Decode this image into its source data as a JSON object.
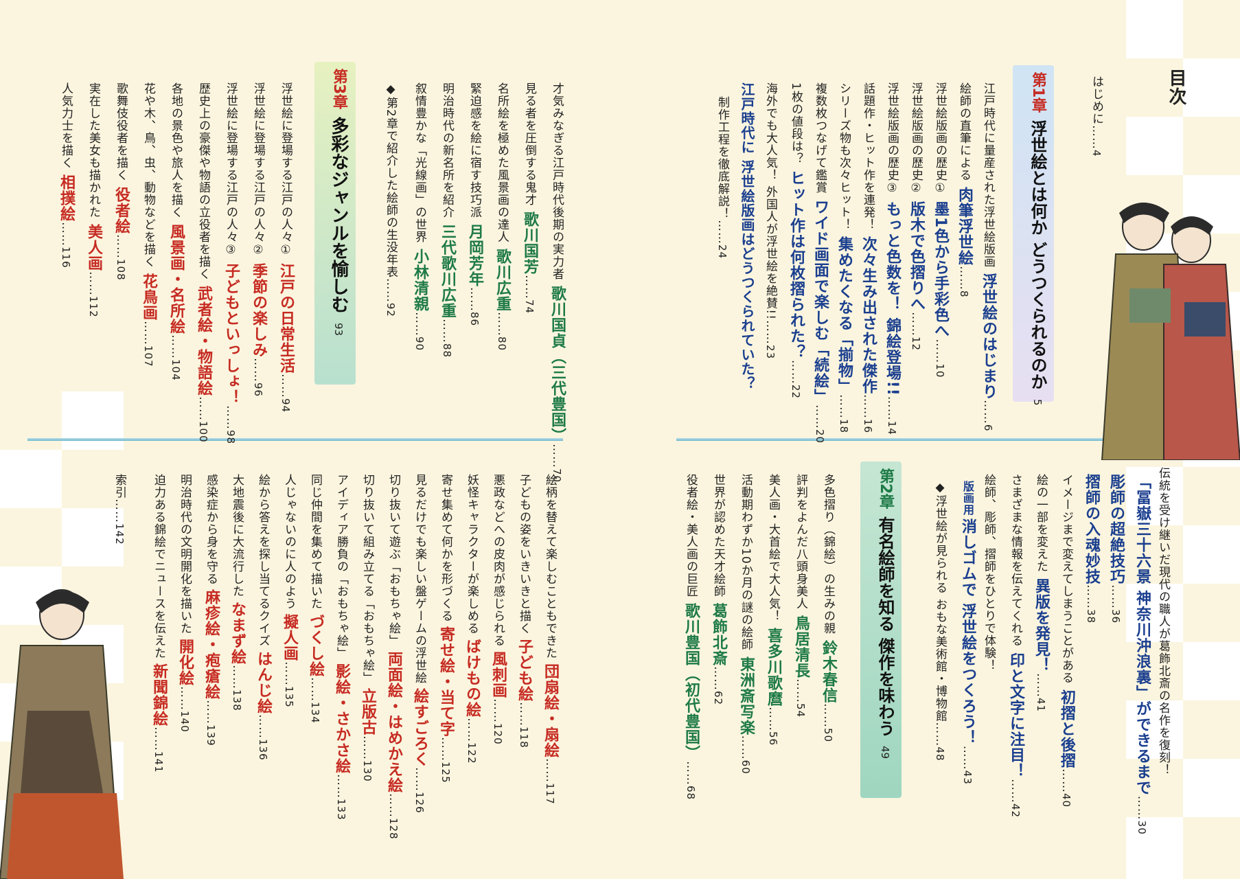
{
  "toc_title": "目次",
  "hajimeni": {
    "label": "はじめに",
    "page": "4"
  },
  "ch1": {
    "mark": "第1章",
    "title": "浮世絵とは何か どうつくられるのか",
    "page": "5"
  },
  "ch1_items": [
    {
      "pre": "江戸時代に量産された浮世絵版画",
      "main": "浮世絵のはじまり",
      "page": "6"
    },
    {
      "pre": "絵師の直筆による",
      "main": "肉筆浮世絵",
      "page": "8"
    },
    {
      "pre": "浮世絵版画の歴史①",
      "main": "墨1色から手彩色へ",
      "page": "10"
    },
    {
      "pre": "浮世絵版画の歴史②",
      "main": "版木で色摺りへ",
      "page": "12"
    },
    {
      "pre": "浮世絵版画の歴史③",
      "main": "もっと色数を！ 錦絵登場!!",
      "page": "14"
    },
    {
      "pre": "話題作・ヒット作を連発！",
      "main": "次々生み出された傑作",
      "page": "16"
    },
    {
      "pre": "シリーズ物も次々ヒット！",
      "main": "集めたくなる「揃物」",
      "page": "18"
    },
    {
      "pre": "複数枚つなげて鑑賞",
      "main": "ワイド画面で楽しむ「続絵」",
      "page": "20"
    },
    {
      "pre": "1枚の値段は？",
      "main": "ヒット作は何枚摺られた？",
      "page": "22"
    },
    {
      "pre": "海外でも大人気！ 外国人が浮世絵を絶賛!!",
      "main": "",
      "page": "23"
    },
    {
      "pre": "",
      "main": "江戸時代に 浮世絵版画はどうつくられていた？",
      "page": ""
    },
    {
      "pre": "制作工程を徹底解説！",
      "main": "",
      "page": "24"
    }
  ],
  "ch1_right": [
    {
      "pre": "伝統を受け継いだ現代の職人が葛飾北斎の名作を復刻！",
      "main": "",
      "page": ""
    },
    {
      "pre": "",
      "main": "「冨嶽三十六景 神奈川沖浪裏」ができるまで",
      "page": "30"
    },
    {
      "pre": "",
      "main": "彫師の超絶技巧",
      "page": "36"
    },
    {
      "pre": "",
      "main": "摺師の入魂妙技",
      "page": "38"
    },
    {
      "pre": "イメージまで変えてしまうことがある",
      "main": "初摺と後摺",
      "page": "40"
    },
    {
      "pre": "絵の一部を変えた",
      "main": "異版を発見！",
      "page": "41"
    },
    {
      "pre": "さまざまな情報を伝えてくれる",
      "main": "印と文字に注目！",
      "page": "42"
    },
    {
      "pre": "絵師、彫師、摺師をひとりで体験！",
      "main": "",
      "page": ""
    },
    {
      "pre": "版画用",
      "main": "消しゴムで 浮世絵をつくろう！",
      "page": "43"
    },
    {
      "pre": "◆浮世絵が見られる おもな美術館・博物館",
      "main": "",
      "page": "48"
    }
  ],
  "ch2": {
    "mark": "第2章",
    "title": "有名絵師を知る 傑作を味わう",
    "page": "49"
  },
  "ch2_items": [
    {
      "pre": "多色摺り（錦絵）の生みの親",
      "main": "鈴木春信",
      "page": "50"
    },
    {
      "pre": "評判をよんだ八頭身美人",
      "main": "鳥居清長",
      "page": "54"
    },
    {
      "pre": "美人画・大首絵で大人気！",
      "main": "喜多川歌麿",
      "page": "56"
    },
    {
      "pre": "活動期わずか10か月の謎の絵師",
      "main": "東洲斎写楽",
      "page": "60"
    },
    {
      "pre": "世界が認めた天才絵師",
      "main": "葛飾北斎",
      "page": "62"
    },
    {
      "pre": "役者絵・美人画の巨匠",
      "main": "歌川豊国（初代豊国）",
      "page": "68"
    }
  ],
  "ch2_left": [
    {
      "pre": "才気みなぎる江戸時代後期の実力者",
      "main": "歌川国貞（三代豊国）",
      "page": "70"
    },
    {
      "pre": "見る者を圧倒する鬼才",
      "main": "歌川国芳",
      "page": "74"
    },
    {
      "pre": "名所絵を極めた風景画の達人",
      "main": "歌川広重",
      "page": "80"
    },
    {
      "pre": "緊迫感を絵に宿す技巧派",
      "main": "月岡芳年",
      "page": "86"
    },
    {
      "pre": "明治時代の新名所を紹介",
      "main": "三代歌川広重",
      "page": "88"
    },
    {
      "pre": "叙情豊かな「光線画」の世界",
      "main": "小林清親",
      "page": "90"
    },
    {
      "pre": "◆第2章で紹介した絵師の生没年表",
      "main": "",
      "page": "92"
    }
  ],
  "ch3": {
    "mark": "第3章",
    "title": "多彩なジャンルを愉しむ",
    "page": "93"
  },
  "ch3_items": [
    {
      "pre": "浮世絵に登場する江戸の人々①",
      "main": "江戸の日常生活",
      "page": "94"
    },
    {
      "pre": "浮世絵に登場する江戸の人々②",
      "main": "季節の楽しみ",
      "page": "96"
    },
    {
      "pre": "浮世絵に登場する江戸の人々③",
      "main": "子どもといっしょ！",
      "page": "98"
    },
    {
      "pre": "歴史上の豪傑や物語の立役者を描く",
      "main": "武者絵・物語絵",
      "page": "100"
    },
    {
      "pre": "各地の景色や旅人を描く",
      "main": "風景画・名所絵",
      "page": "104"
    },
    {
      "pre": "花や木、鳥、虫、動物などを描く",
      "main": "花鳥画",
      "page": "107"
    },
    {
      "pre": "歌舞伎役者を描く",
      "main": "役者絵",
      "page": "108"
    },
    {
      "pre": "実在した美女も描かれた",
      "main": "美人画",
      "page": "112"
    },
    {
      "pre": "人気力士を描く",
      "main": "相撲絵",
      "page": "116"
    }
  ],
  "ch3_more": [
    {
      "pre": "絵柄を替えて楽しむこともできた",
      "main": "団扇絵・扇絵",
      "page": "117"
    },
    {
      "pre": "子どもの姿をいきいきと描く",
      "main": "子ども絵",
      "page": "118"
    },
    {
      "pre": "悪政などへの皮肉が感じられる",
      "main": "風刺画",
      "page": "120"
    },
    {
      "pre": "妖怪キャラクターが楽しめる",
      "main": "ばけもの絵",
      "page": "122"
    },
    {
      "pre": "寄せ集めて何かを形づくる",
      "main": "寄せ絵・当て字",
      "page": "125"
    },
    {
      "pre": "見るだけでも楽しい盤ゲームの浮世絵",
      "main": "絵すごろく",
      "page": "126"
    },
    {
      "pre": "切り抜いて遊ぶ「おもちゃ絵」",
      "main": "両面絵・はめかえ絵",
      "page": "128"
    },
    {
      "pre": "切り抜いて組み立てる「おもちゃ絵」",
      "main": "立版古",
      "page": "130"
    },
    {
      "pre": "アイディア勝負の「おもちゃ絵」",
      "main": "影絵・さかさ絵",
      "page": "133"
    },
    {
      "pre": "同じ仲間を集めて描いた",
      "main": "づくし絵",
      "page": "134"
    },
    {
      "pre": "人じゃないのに人のよう",
      "main": "擬人画",
      "page": "135"
    },
    {
      "pre": "絵から答えを探し当てるクイズ",
      "main": "はんじ絵",
      "page": "136"
    },
    {
      "pre": "大地震後に大流行した",
      "main": "なまず絵",
      "page": "138"
    },
    {
      "pre": "感染症から身を守る",
      "main": "麻疹絵・疱瘡絵",
      "page": "139"
    },
    {
      "pre": "明治時代の文明開化を描いた",
      "main": "開化絵",
      "page": "140"
    },
    {
      "pre": "迫力ある錦絵でニュースを伝えた",
      "main": "新聞錦絵",
      "page": "141"
    },
    {
      "pre": "索引",
      "main": "",
      "page": "142"
    }
  ],
  "colors": {
    "blue": "#1b3f8f",
    "green": "#1e7a46",
    "red": "#c62b22",
    "bg": "#fbf5df"
  }
}
